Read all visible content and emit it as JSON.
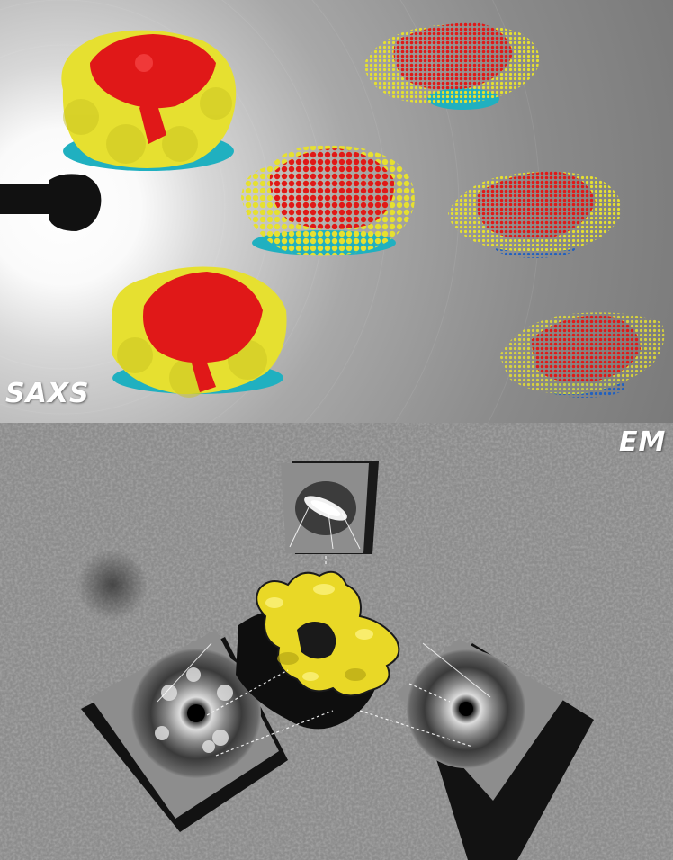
{
  "panels": {
    "saxs": {
      "label": "SAXS"
    },
    "em": {
      "label": "EM"
    }
  },
  "colors": {
    "model_top": "#e01818",
    "model_side": "#e6e030",
    "model_bottom": "#20b0c0",
    "em_density": "#f0e02a"
  }
}
